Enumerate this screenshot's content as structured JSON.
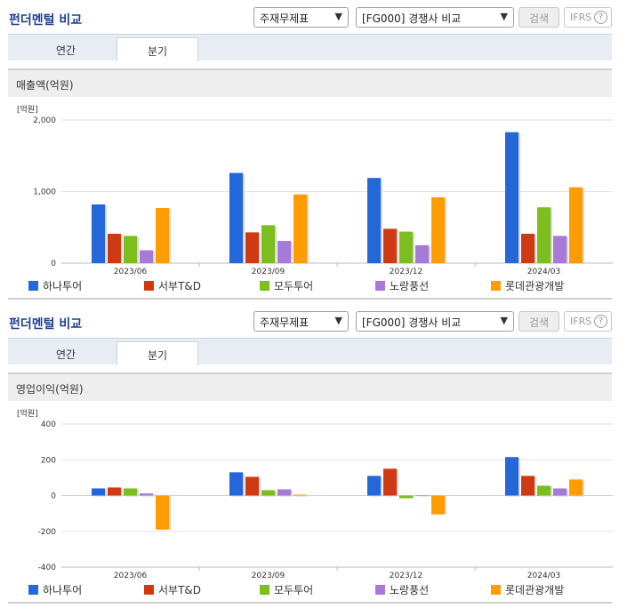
{
  "header": {
    "title": "펀더멘털 비교",
    "select_statement": "주재무제표",
    "select_compare": "[FG000] 경쟁사 비교",
    "search_label": "검색",
    "ifrs_label": "IFRS",
    "help_glyph": "?"
  },
  "tabs": [
    {
      "label": "연간",
      "active": false
    },
    {
      "label": "분기",
      "active": true
    }
  ],
  "series_colors": [
    "#2467d8",
    "#d03a12",
    "#7bbe1e",
    "#a77ad8",
    "#ff9c00"
  ],
  "chart_data": [
    {
      "type": "bar",
      "title": "매출액(억원)",
      "unit": "[억원]",
      "categories": [
        "2023/06",
        "2023/09",
        "2023/12",
        "2024/03"
      ],
      "ylim": [
        0,
        2000
      ],
      "yticks": [
        "0",
        "1,000",
        "2,000"
      ],
      "ytick_values": [
        0,
        1000,
        2000
      ],
      "grid": true,
      "legend": "bottom",
      "series": [
        {
          "name": "하나투어",
          "values": [
            820,
            1260,
            1190,
            1830
          ]
        },
        {
          "name": "서부T&D",
          "values": [
            410,
            430,
            480,
            410
          ]
        },
        {
          "name": "모두투어",
          "values": [
            380,
            530,
            440,
            780
          ]
        },
        {
          "name": "노랑풍선",
          "values": [
            180,
            310,
            250,
            380
          ]
        },
        {
          "name": "롯데관광개발",
          "values": [
            770,
            960,
            920,
            1060
          ]
        }
      ]
    },
    {
      "type": "bar",
      "title": "영업이익(억원)",
      "unit": "[억원]",
      "categories": [
        "2023/06",
        "2023/09",
        "2023/12",
        "2024/03"
      ],
      "ylim": [
        -400,
        400
      ],
      "yticks": [
        "-400",
        "-200",
        "0",
        "200",
        "400"
      ],
      "ytick_values": [
        -400,
        -200,
        0,
        200,
        400
      ],
      "grid": true,
      "legend": "bottom",
      "series": [
        {
          "name": "하나투어",
          "values": [
            40,
            130,
            110,
            215
          ]
        },
        {
          "name": "서부T&D",
          "values": [
            45,
            105,
            150,
            110
          ]
        },
        {
          "name": "모두투어",
          "values": [
            40,
            30,
            -15,
            55
          ]
        },
        {
          "name": "노랑풍선",
          "values": [
            12,
            35,
            0,
            40
          ]
        },
        {
          "name": "롯데관광개발",
          "values": [
            -190,
            5,
            -105,
            90
          ]
        }
      ]
    }
  ]
}
